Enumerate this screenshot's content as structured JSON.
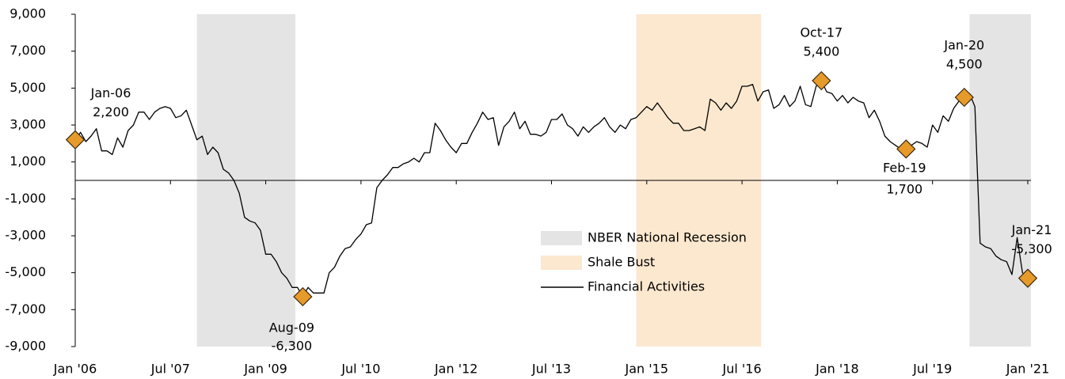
{
  "chart_data": {
    "type": "line",
    "x": [
      "2006-01",
      "2006-02",
      "2006-03",
      "2006-04",
      "2006-05",
      "2006-06",
      "2006-07",
      "2006-08",
      "2006-09",
      "2006-10",
      "2006-11",
      "2006-12",
      "2007-01",
      "2007-02",
      "2007-03",
      "2007-04",
      "2007-05",
      "2007-06",
      "2007-07",
      "2007-08",
      "2007-09",
      "2007-10",
      "2007-11",
      "2007-12",
      "2008-01",
      "2008-02",
      "2008-03",
      "2008-04",
      "2008-05",
      "2008-06",
      "2008-07",
      "2008-08",
      "2008-09",
      "2008-10",
      "2008-11",
      "2008-12",
      "2009-01",
      "2009-02",
      "2009-03",
      "2009-04",
      "2009-05",
      "2009-06",
      "2009-07",
      "2009-08",
      "2009-09",
      "2009-10",
      "2009-11",
      "2009-12",
      "2010-01",
      "2010-02",
      "2010-03",
      "2010-04",
      "2010-05",
      "2010-06",
      "2010-07",
      "2010-08",
      "2010-09",
      "2010-10",
      "2010-11",
      "2010-12",
      "2011-01",
      "2011-02",
      "2011-03",
      "2011-04",
      "2011-05",
      "2011-06",
      "2011-07",
      "2011-08",
      "2011-09",
      "2011-10",
      "2011-11",
      "2011-12",
      "2012-01",
      "2012-02",
      "2012-03",
      "2012-04",
      "2012-05",
      "2012-06",
      "2012-07",
      "2012-08",
      "2012-09",
      "2012-10",
      "2012-11",
      "2012-12",
      "2013-01",
      "2013-02",
      "2013-03",
      "2013-04",
      "2013-05",
      "2013-06",
      "2013-07",
      "2013-08",
      "2013-09",
      "2013-10",
      "2013-11",
      "2013-12",
      "2014-01",
      "2014-02",
      "2014-03",
      "2014-04",
      "2014-05",
      "2014-06",
      "2014-07",
      "2014-08",
      "2014-09",
      "2014-10",
      "2014-11",
      "2014-12",
      "2015-01",
      "2015-02",
      "2015-03",
      "2015-04",
      "2015-05",
      "2015-06",
      "2015-07",
      "2015-08",
      "2015-09",
      "2015-10",
      "2015-11",
      "2015-12",
      "2016-01",
      "2016-02",
      "2016-03",
      "2016-04",
      "2016-05",
      "2016-06",
      "2016-07",
      "2016-08",
      "2016-09",
      "2016-10",
      "2016-11",
      "2016-12",
      "2017-01",
      "2017-02",
      "2017-03",
      "2017-04",
      "2017-05",
      "2017-06",
      "2017-07",
      "2017-08",
      "2017-09",
      "2017-10",
      "2017-11",
      "2017-12",
      "2018-01",
      "2018-02",
      "2018-03",
      "2018-04",
      "2018-05",
      "2018-06",
      "2018-07",
      "2018-08",
      "2018-09",
      "2018-10",
      "2018-11",
      "2018-12",
      "2019-01",
      "2019-02",
      "2019-03",
      "2019-04",
      "2019-05",
      "2019-06",
      "2019-07",
      "2019-08",
      "2019-09",
      "2019-10",
      "2019-11",
      "2019-12",
      "2020-01",
      "2020-02",
      "2020-03",
      "2020-04",
      "2020-05",
      "2020-06",
      "2020-07",
      "2020-08",
      "2020-09",
      "2020-10",
      "2020-11",
      "2020-12",
      "2021-01"
    ],
    "series": [
      {
        "name": "Financial Activities",
        "color": "#000000",
        "values": [
          2200,
          2600,
          2100,
          2400,
          2800,
          1600,
          1600,
          1400,
          2300,
          1800,
          2700,
          3000,
          3700,
          3700,
          3300,
          3700,
          3900,
          4000,
          3900,
          3400,
          3500,
          3800,
          3000,
          2200,
          2400,
          1400,
          1800,
          1500,
          600,
          400,
          0,
          -700,
          -2000,
          -2200,
          -2300,
          -2700,
          -4000,
          -4000,
          -4400,
          -5000,
          -5300,
          -5800,
          -5800,
          -6300,
          -5800,
          -6100,
          -6100,
          -6100,
          -5000,
          -4700,
          -4100,
          -3700,
          -3600,
          -3200,
          -2900,
          -2400,
          -2300,
          -400,
          0,
          300,
          700,
          700,
          900,
          1000,
          1200,
          1000,
          1500,
          1500,
          3100,
          2700,
          2200,
          1800,
          1500,
          2000,
          2000,
          2600,
          3100,
          3700,
          3300,
          3400,
          1900,
          2900,
          3200,
          3700,
          2800,
          3200,
          2500,
          2500,
          2400,
          2600,
          3300,
          3300,
          3600,
          3000,
          2800,
          2400,
          2900,
          2600,
          2900,
          3100,
          3400,
          2900,
          2600,
          3000,
          2800,
          3300,
          3400,
          3700,
          4000,
          3800,
          4200,
          3800,
          3400,
          3100,
          3100,
          2700,
          2700,
          2800,
          2900,
          2700,
          4400,
          4200,
          3800,
          4200,
          3900,
          4300,
          5100,
          5100,
          5200,
          4300,
          4800,
          4900,
          3900,
          4100,
          4600,
          4000,
          4300,
          5100,
          4100,
          4000,
          5100,
          5400,
          4800,
          4700,
          4300,
          4600,
          4200,
          4500,
          4300,
          4200,
          3400,
          3800,
          3200,
          2400,
          2100,
          1900,
          1700,
          1700,
          1900,
          2100,
          2000,
          1800,
          3000,
          2600,
          3500,
          3200,
          3900,
          4300,
          4500,
          4700,
          4000,
          -3400,
          -3600,
          -3700,
          -4100,
          -4300,
          -4400,
          -5100,
          -3100,
          -5000,
          -5300
        ]
      }
    ],
    "shading": [
      {
        "name": "NBER National Recession",
        "color": "#e4e4e4",
        "spans": [
          [
            "2007-12",
            "2009-06"
          ],
          [
            "2020-02",
            "2021-01"
          ]
        ]
      },
      {
        "name": "Shale Bust",
        "color": "#fbe8cf",
        "spans": [
          [
            "2014-11",
            "2016-10"
          ]
        ]
      }
    ],
    "annotations": [
      {
        "x": "2006-01",
        "date_label": "Jan-06",
        "value": 2200,
        "value_label": "2,200"
      },
      {
        "x": "2009-08",
        "date_label": "Aug-09",
        "value": -6300,
        "value_label": "-6,300"
      },
      {
        "x": "2017-10",
        "date_label": "Oct-17",
        "value": 5400,
        "value_label": "5,400"
      },
      {
        "x": "2019-02",
        "date_label": "Feb-19",
        "value": 1700,
        "value_label": "1,700"
      },
      {
        "x": "2020-01",
        "date_label": "Jan-20",
        "value": 4500,
        "value_label": "4,500"
      },
      {
        "x": "2021-01",
        "date_label": "Jan-21",
        "value": -5300,
        "value_label": "-5,300"
      }
    ],
    "marker_color": "#e69a2a",
    "xlim": [
      "2006-01",
      "2021-01"
    ],
    "xticks": [
      {
        "value": "2006-01",
        "label": "Jan '06"
      },
      {
        "value": "2007-07",
        "label": "Jul '07"
      },
      {
        "value": "2009-01",
        "label": "Jan '09"
      },
      {
        "value": "2010-07",
        "label": "Jul '10"
      },
      {
        "value": "2012-01",
        "label": "Jan '12"
      },
      {
        "value": "2013-07",
        "label": "Jul '13"
      },
      {
        "value": "2015-01",
        "label": "Jan '15"
      },
      {
        "value": "2016-07",
        "label": "Jul '16"
      },
      {
        "value": "2018-01",
        "label": "Jan '18"
      },
      {
        "value": "2019-07",
        "label": "Jul '19"
      },
      {
        "value": "2021-01",
        "label": "Jan '21"
      }
    ],
    "ylim": [
      -9000,
      9000
    ],
    "yticks": [
      {
        "value": 9000,
        "label": "9,000"
      },
      {
        "value": 7000,
        "label": "7,000"
      },
      {
        "value": 5000,
        "label": "5,000"
      },
      {
        "value": 3000,
        "label": "3,000"
      },
      {
        "value": 1000,
        "label": "1,000"
      },
      {
        "value": -1000,
        "label": "-1,000"
      },
      {
        "value": -3000,
        "label": "-3,000"
      },
      {
        "value": -5000,
        "label": "-5,000"
      },
      {
        "value": -7000,
        "label": "-7,000"
      },
      {
        "value": -9000,
        "label": "-9,000"
      }
    ]
  }
}
